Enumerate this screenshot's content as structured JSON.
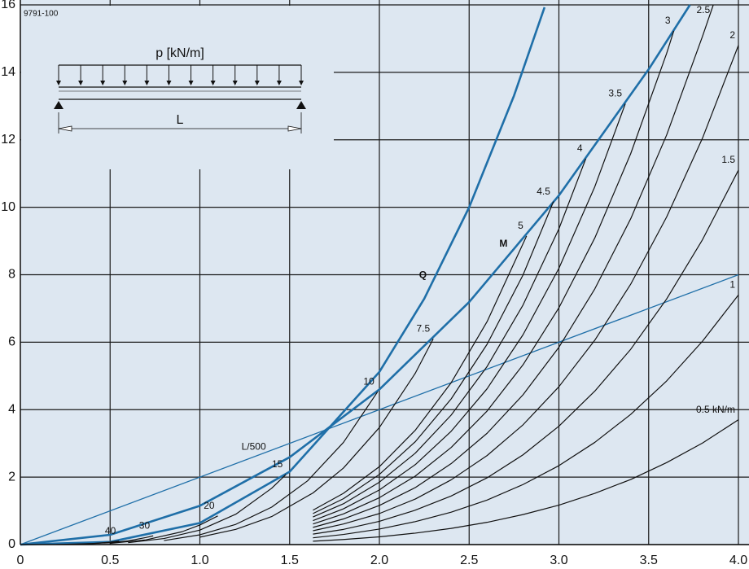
{
  "chart_data": {
    "type": "line",
    "figure_id": "9791-100",
    "diagram": {
      "load_label": "p [kN/m]",
      "span_label": "L"
    },
    "background": "#dde7f1",
    "xlim": [
      0,
      4
    ],
    "ylim": [
      0,
      16
    ],
    "xticks": [
      0,
      0.5,
      {
        "value": 1,
        "label": "1.0"
      },
      1.5,
      {
        "value": 2,
        "label": "2.0"
      },
      2.5,
      {
        "value": 3,
        "label": "3.0"
      },
      3.5,
      {
        "value": 4,
        "label": "4.0"
      }
    ],
    "yticks": [
      0,
      2,
      4,
      6,
      8,
      10,
      12,
      14,
      16
    ],
    "grid": true,
    "series": [
      {
        "name": "Q",
        "color": "#1f6fa8",
        "width": 2.6,
        "x": [
          0,
          0.5,
          1,
          1.5,
          2,
          2.25,
          2.5,
          2.75,
          2.92
        ],
        "values": [
          0,
          0.08,
          0.64,
          2.16,
          5.12,
          7.29,
          10.0,
          13.31,
          15.93
        ]
      },
      {
        "name": "M",
        "color": "#1f6fa8",
        "width": 2.6,
        "x": [
          0,
          0.5,
          1,
          1.5,
          2,
          2.5,
          3,
          3.5,
          3.73
        ],
        "values": [
          0,
          0.29,
          1.15,
          2.59,
          4.6,
          7.19,
          10.35,
          14.09,
          16.0
        ]
      },
      {
        "name": "L/500",
        "color": "#1f6fa8",
        "width": 1.3,
        "x": [
          0,
          4
        ],
        "values": [
          0,
          8
        ]
      },
      {
        "name": "0.5 kN/m",
        "color": "#111111",
        "width": 1.2,
        "x": [
          1.63,
          1.8,
          2.0,
          2.2,
          2.4,
          2.6,
          2.8,
          3.0,
          3.2,
          3.4,
          3.6,
          3.8,
          4.0
        ],
        "values": [
          0.1,
          0.15,
          0.23,
          0.34,
          0.48,
          0.66,
          0.89,
          1.17,
          1.52,
          1.93,
          2.43,
          3.01,
          3.7
        ]
      },
      {
        "name": "1",
        "color": "#111111",
        "width": 1.2,
        "x": [
          1.63,
          1.8,
          2.0,
          2.2,
          2.4,
          2.6,
          2.8,
          3.0,
          3.2,
          3.4,
          3.6,
          3.8,
          4.0
        ],
        "values": [
          0.2,
          0.3,
          0.46,
          0.68,
          0.96,
          1.32,
          1.78,
          2.34,
          3.03,
          3.86,
          4.85,
          6.03,
          7.4
        ]
      },
      {
        "name": "1.5",
        "color": "#111111",
        "width": 1.2,
        "x": [
          1.63,
          1.8,
          2.0,
          2.2,
          2.4,
          2.6,
          2.8,
          3.0,
          3.2,
          3.4,
          3.6,
          3.8,
          4.0
        ],
        "values": [
          0.31,
          0.45,
          0.69,
          1.02,
          1.44,
          1.98,
          2.66,
          3.51,
          4.55,
          5.79,
          7.28,
          9.04,
          11.1
        ]
      },
      {
        "name": "2",
        "color": "#111111",
        "width": 1.2,
        "x": [
          1.63,
          1.8,
          2.0,
          2.2,
          2.4,
          2.6,
          2.8,
          3.0,
          3.2,
          3.4,
          3.6,
          3.8,
          4.0
        ],
        "values": [
          0.41,
          0.61,
          0.92,
          1.35,
          1.92,
          2.64,
          3.55,
          4.68,
          6.06,
          7.72,
          9.71,
          12.05,
          14.8
        ]
      },
      {
        "name": "2.5",
        "color": "#111111",
        "width": 1.2,
        "x": [
          1.63,
          1.8,
          2.0,
          2.2,
          2.4,
          2.6,
          2.8,
          3.0,
          3.2,
          3.4,
          3.6,
          3.8,
          3.86
        ],
        "values": [
          0.51,
          0.76,
          1.16,
          1.69,
          2.4,
          3.3,
          4.44,
          5.85,
          7.58,
          9.66,
          12.14,
          15.07,
          16.0
        ]
      },
      {
        "name": "3",
        "color": "#111111",
        "width": 1.2,
        "x": [
          1.63,
          1.8,
          2.0,
          2.2,
          2.4,
          2.6,
          2.8,
          3.0,
          3.2,
          3.4,
          3.6,
          3.64
        ],
        "values": [
          0.61,
          0.91,
          1.39,
          2.03,
          2.88,
          3.96,
          5.33,
          7.02,
          9.09,
          11.59,
          14.56,
          15.23
        ]
      },
      {
        "name": "3.5",
        "color": "#111111",
        "width": 1.2,
        "x": [
          1.63,
          1.8,
          2.0,
          2.2,
          2.4,
          2.6,
          2.8,
          3.0,
          3.2,
          3.37
        ],
        "values": [
          0.71,
          1.06,
          1.62,
          2.37,
          3.36,
          4.62,
          6.22,
          8.19,
          10.61,
          13.07
        ]
      },
      {
        "name": "4",
        "color": "#111111",
        "width": 1.2,
        "x": [
          1.63,
          1.8,
          2.0,
          2.2,
          2.4,
          2.6,
          2.8,
          3.0,
          3.15
        ],
        "values": [
          0.82,
          1.21,
          1.85,
          2.71,
          3.84,
          5.28,
          7.1,
          9.36,
          11.44
        ]
      },
      {
        "name": "4.5",
        "color": "#111111",
        "width": 1.2,
        "x": [
          1.63,
          1.8,
          2.0,
          2.2,
          2.4,
          2.6,
          2.8,
          2.97
        ],
        "values": [
          0.92,
          1.36,
          2.08,
          3.05,
          4.32,
          5.94,
          7.99,
          10.17
        ]
      },
      {
        "name": "5",
        "color": "#111111",
        "width": 1.2,
        "x": [
          1.63,
          1.8,
          2.0,
          2.2,
          2.4,
          2.6,
          2.82
        ],
        "values": [
          1.02,
          1.52,
          2.31,
          3.39,
          4.8,
          6.61,
          9.15
        ]
      },
      {
        "name": "7.5",
        "color": "#111111",
        "width": 1.2,
        "x": [
          1.0,
          1.2,
          1.4,
          1.63,
          1.8,
          2.0,
          2.2,
          2.3
        ],
        "values": [
          0.22,
          0.45,
          0.83,
          1.53,
          2.27,
          3.47,
          5.08,
          6.1
        ]
      },
      {
        "name": "10",
        "color": "#111111",
        "width": 1.2,
        "x": [
          0.8,
          1.0,
          1.2,
          1.4,
          1.6,
          1.8,
          1.99
        ],
        "values": [
          0.12,
          0.29,
          0.6,
          1.11,
          1.89,
          3.03,
          4.53
        ]
      },
      {
        "name": "15",
        "color": "#111111",
        "width": 1.2,
        "x": [
          0.6,
          0.8,
          1.0,
          1.2,
          1.4,
          1.48
        ],
        "values": [
          0.056,
          0.18,
          0.43,
          0.9,
          1.67,
          2.08
        ]
      },
      {
        "name": "20",
        "color": "#111111",
        "width": 1.2,
        "x": [
          0.5,
          0.7,
          0.9,
          1.0,
          1.1
        ],
        "values": [
          0.036,
          0.14,
          0.38,
          0.58,
          0.85
        ]
      },
      {
        "name": "30",
        "color": "#111111",
        "width": 1.2,
        "x": [
          0.3,
          0.5,
          0.6,
          0.7,
          0.74
        ],
        "values": [
          0.007,
          0.054,
          0.11,
          0.21,
          0.26
        ]
      },
      {
        "name": "40",
        "color": "#111111",
        "width": 1.2,
        "x": [
          0.2,
          0.4,
          0.5,
          0.55
        ],
        "values": [
          0.002,
          0.03,
          0.072,
          0.106
        ]
      }
    ]
  }
}
